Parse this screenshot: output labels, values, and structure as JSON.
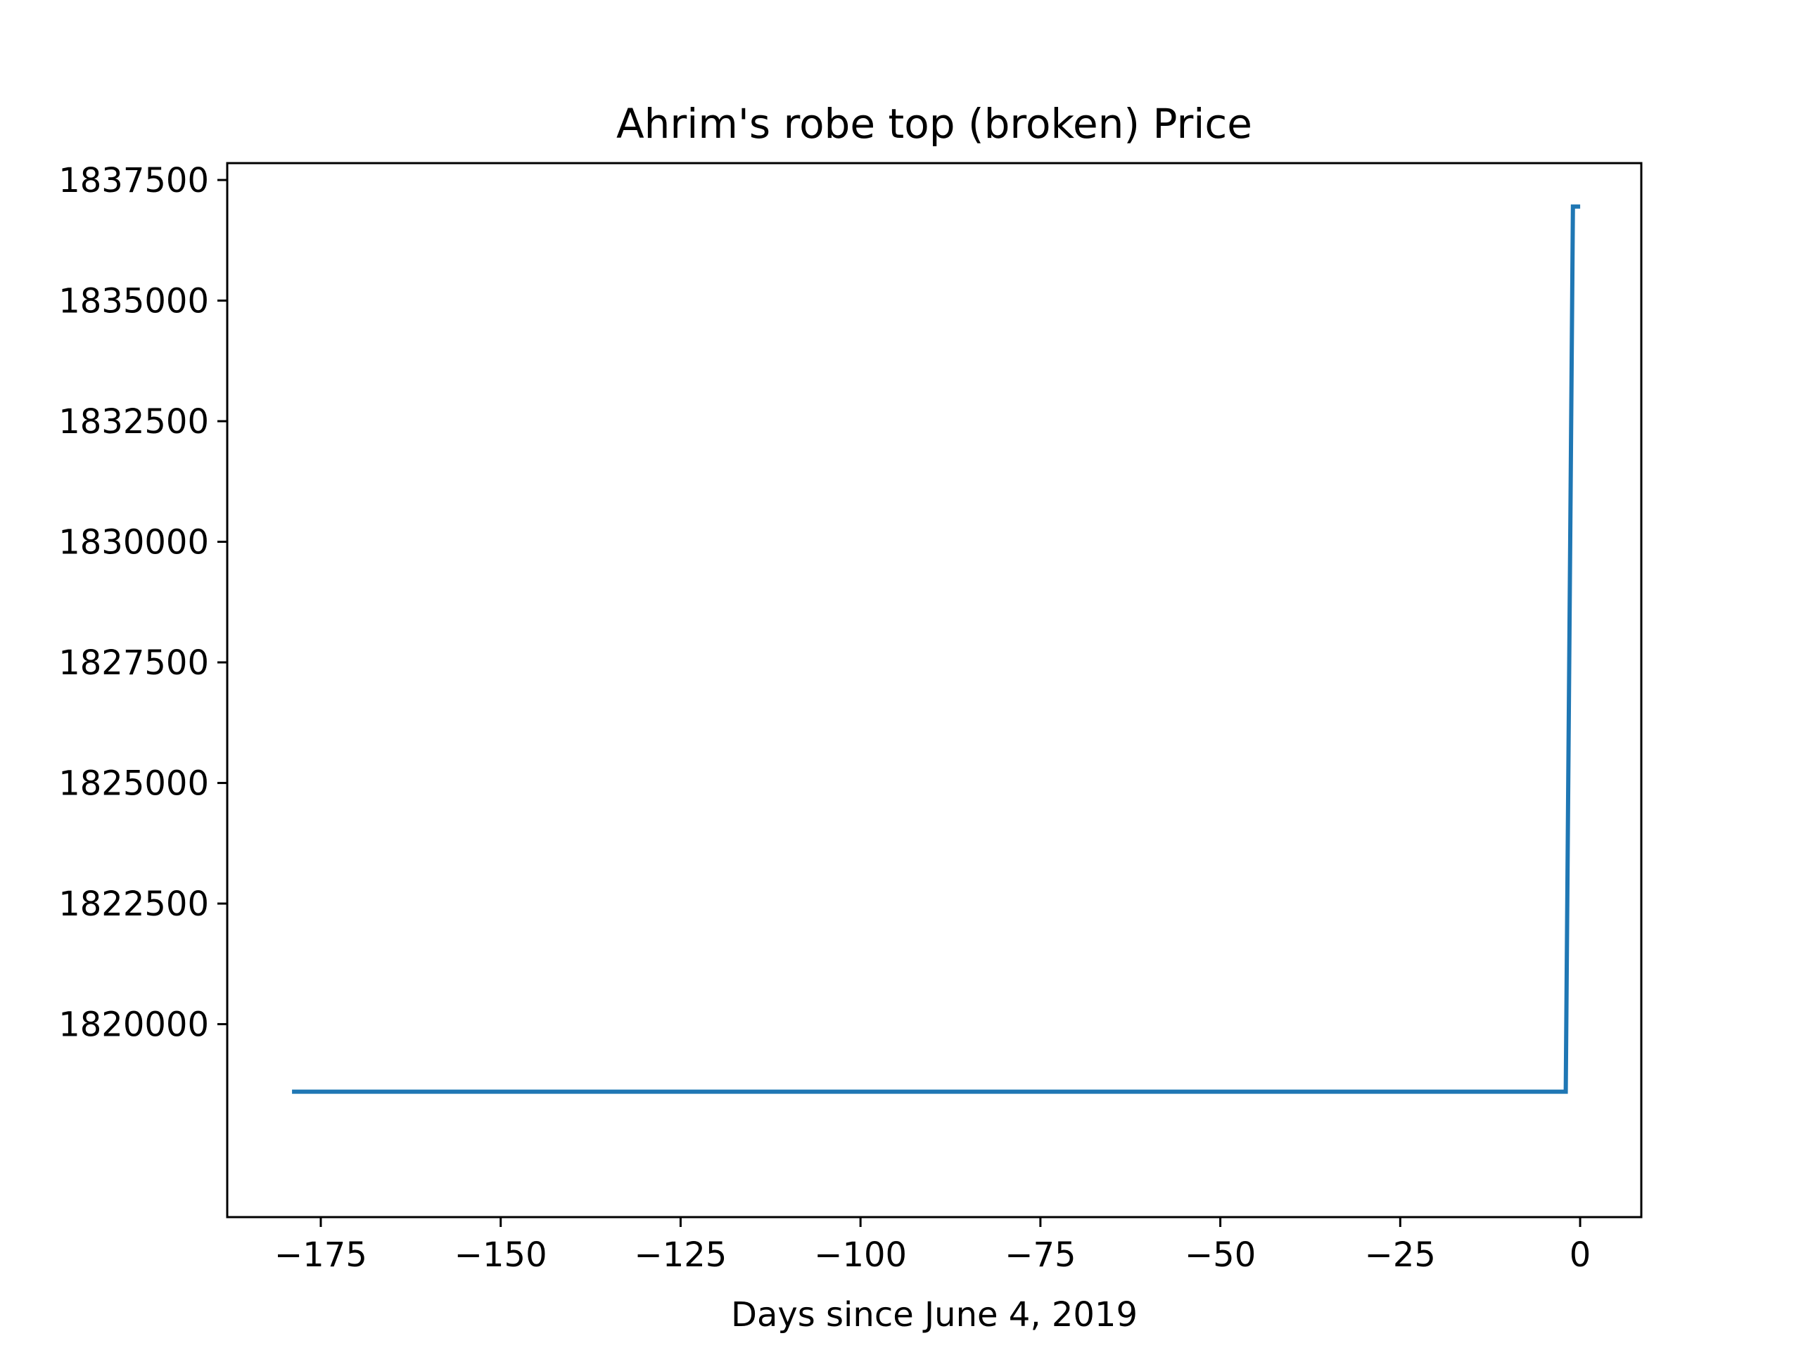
{
  "chart_data": {
    "type": "line",
    "title": "Ahrim's robe top (broken) Price",
    "xlabel": "Days since June 4, 2019",
    "ylabel": "",
    "xlim": [
      -188,
      8.5
    ],
    "ylim": [
      1816000,
      1837850
    ],
    "x_ticks": [
      -175,
      -150,
      -125,
      -100,
      -75,
      -50,
      -25,
      0
    ],
    "x_tick_labels": [
      "−175",
      "−150",
      "−125",
      "−100",
      "−75",
      "−50",
      "−25",
      "0"
    ],
    "y_ticks": [
      1820000,
      1822500,
      1825000,
      1827500,
      1830000,
      1832500,
      1835000,
      1837500
    ],
    "y_tick_labels": [
      "1820000",
      "1822500",
      "1825000",
      "1827500",
      "1830000",
      "1832500",
      "1835000",
      "1837500"
    ],
    "grid": false,
    "series": [
      {
        "color": "#1f77b4",
        "x": [
          -179,
          -2,
          -1,
          0
        ],
        "y": [
          1818600,
          1818600,
          1836950,
          1836950
        ]
      }
    ]
  }
}
